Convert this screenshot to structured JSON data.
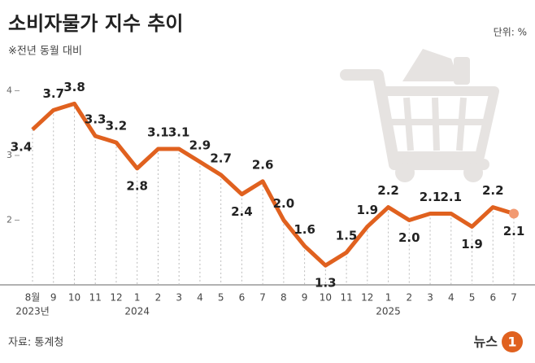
{
  "chart_data": {
    "type": "line",
    "title": "소비자물가 지수 추이",
    "subtitle": "※전년 동월 대비",
    "unit": "단위: %",
    "source": "자료: 통계청",
    "logo_text": "뉴스",
    "logo_mark": "1",
    "categories": [
      "8월",
      "9",
      "10",
      "11",
      "12",
      "1",
      "2",
      "3",
      "4",
      "5",
      "6",
      "7",
      "8",
      "9",
      "10",
      "11",
      "12",
      "1",
      "2",
      "3",
      "4",
      "5",
      "6",
      "7"
    ],
    "year_labels": [
      "2023년",
      null,
      null,
      null,
      null,
      "2024",
      null,
      null,
      null,
      null,
      null,
      null,
      null,
      null,
      null,
      null,
      null,
      "2025",
      null,
      null,
      null,
      null,
      null,
      null
    ],
    "values": [
      3.4,
      3.7,
      3.8,
      3.3,
      3.2,
      2.8,
      3.1,
      3.1,
      2.9,
      2.7,
      2.4,
      2.6,
      2.0,
      1.6,
      1.3,
      1.5,
      1.9,
      2.2,
      2.0,
      2.1,
      2.1,
      1.9,
      2.2,
      2.1
    ],
    "value_labels": [
      "3.4",
      "3.7",
      "3.8",
      "3.3",
      "3.2",
      "2.8",
      "3.1",
      "3.1",
      "2.9",
      "2.7",
      "2.4",
      "2.6",
      "2.0",
      "1.6",
      "1.3",
      "1.5",
      "1.9",
      "2.2",
      "2.0",
      "2.1",
      "2.1",
      "1.9",
      "2.2",
      "2.1"
    ],
    "color": "#e0611f",
    "ylim": [
      1,
      4.25
    ],
    "yticks": [
      2,
      3,
      4
    ]
  }
}
